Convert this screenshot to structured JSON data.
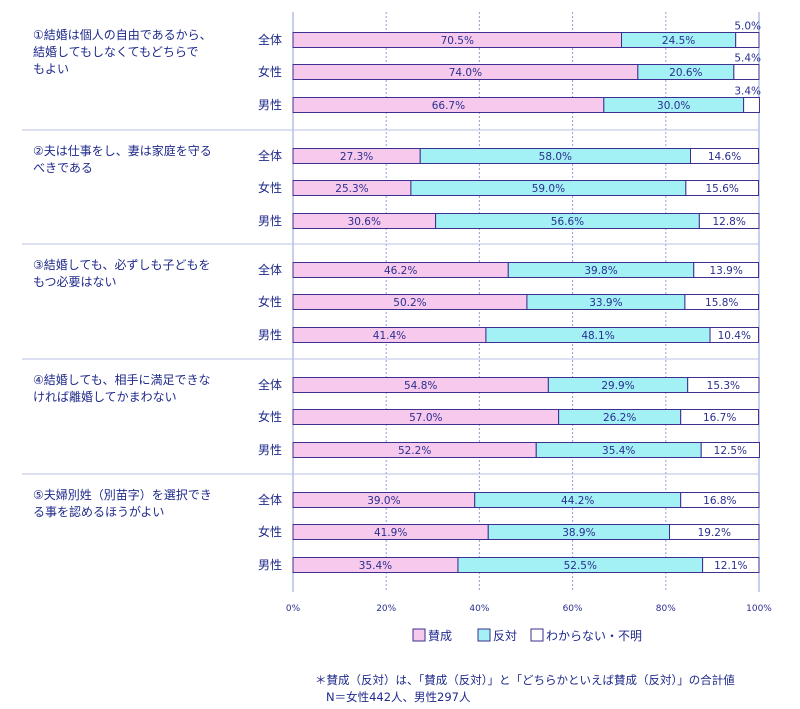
{
  "colors": {
    "approve": "#f7c9ec",
    "oppose": "#a3f1f4",
    "unknown": "#ffffff",
    "border": "#3b2f8f",
    "grid": "#8f9fdc",
    "separator": "#b9c2e6"
  },
  "chart_data": {
    "type": "bar",
    "orientation": "horizontal-stacked-100",
    "xlim": [
      0,
      100
    ],
    "ticks": [
      "0%",
      "20%",
      "40%",
      "60%",
      "80%",
      "100%"
    ],
    "legend": [
      "賛成",
      "反対",
      "わからない・不明"
    ],
    "questions": [
      {
        "text_lines": [
          "①結婚は個人の自由であるから、",
          "結婚してもしなくてもどちらで",
          "もよい"
        ],
        "rows": [
          {
            "label": "全体",
            "values": [
              70.5,
              24.5,
              5.0
            ],
            "labels": [
              "70.5%",
              "24.5%",
              "5.0%"
            ]
          },
          {
            "label": "女性",
            "values": [
              74.0,
              20.6,
              5.4
            ],
            "labels": [
              "74.0%",
              "20.6%",
              "5.4%"
            ]
          },
          {
            "label": "男性",
            "values": [
              66.7,
              30.0,
              3.4
            ],
            "labels": [
              "66.7%",
              "30.0%",
              "3.4%"
            ]
          }
        ]
      },
      {
        "text_lines": [
          "②夫は仕事をし、妻は家庭を守る",
          "べきである"
        ],
        "rows": [
          {
            "label": "全体",
            "values": [
              27.3,
              58.0,
              14.6
            ],
            "labels": [
              "27.3%",
              "58.0%",
              "14.6%"
            ]
          },
          {
            "label": "女性",
            "values": [
              25.3,
              59.0,
              15.6
            ],
            "labels": [
              "25.3%",
              "59.0%",
              "15.6%"
            ]
          },
          {
            "label": "男性",
            "values": [
              30.6,
              56.6,
              12.8
            ],
            "labels": [
              "30.6%",
              "56.6%",
              "12.8%"
            ]
          }
        ]
      },
      {
        "text_lines": [
          "③結婚しても、必ずしも子どもを",
          "もつ必要はない"
        ],
        "rows": [
          {
            "label": "全体",
            "values": [
              46.2,
              39.8,
              13.9
            ],
            "labels": [
              "46.2%",
              "39.8%",
              "13.9%"
            ]
          },
          {
            "label": "女性",
            "values": [
              50.2,
              33.9,
              15.8
            ],
            "labels": [
              "50.2%",
              "33.9%",
              "15.8%"
            ]
          },
          {
            "label": "男性",
            "values": [
              41.4,
              48.1,
              10.4
            ],
            "labels": [
              "41.4%",
              "48.1%",
              "10.4%"
            ]
          }
        ]
      },
      {
        "text_lines": [
          "④結婚しても、相手に満足できな",
          "ければ離婚してかまわない"
        ],
        "rows": [
          {
            "label": "全体",
            "values": [
              54.8,
              29.9,
              15.3
            ],
            "labels": [
              "54.8%",
              "29.9%",
              "15.3%"
            ]
          },
          {
            "label": "女性",
            "values": [
              57.0,
              26.2,
              16.7
            ],
            "labels": [
              "57.0%",
              "26.2%",
              "16.7%"
            ]
          },
          {
            "label": "男性",
            "values": [
              52.2,
              35.4,
              12.5
            ],
            "labels": [
              "52.2%",
              "35.4%",
              "12.5%"
            ]
          }
        ]
      },
      {
        "text_lines": [
          "⑤夫婦別姓（別苗字）を選択でき",
          "る事を認めるほうがよい"
        ],
        "rows": [
          {
            "label": "全体",
            "values": [
              39.0,
              44.2,
              16.8
            ],
            "labels": [
              "39.0%",
              "44.2%",
              "16.8%"
            ]
          },
          {
            "label": "女性",
            "values": [
              41.9,
              38.9,
              19.2
            ],
            "labels": [
              "41.9%",
              "38.9%",
              "19.2%"
            ]
          },
          {
            "label": "男性",
            "values": [
              35.4,
              52.5,
              12.1
            ],
            "labels": [
              "35.4%",
              "52.5%",
              "12.1%"
            ]
          }
        ]
      }
    ]
  },
  "notes": [
    "＊賛成（反対）は、「賛成（反対）」と「どちらかといえば賛成（反対）」の合計値",
    "N＝女性442人、男性297人"
  ]
}
